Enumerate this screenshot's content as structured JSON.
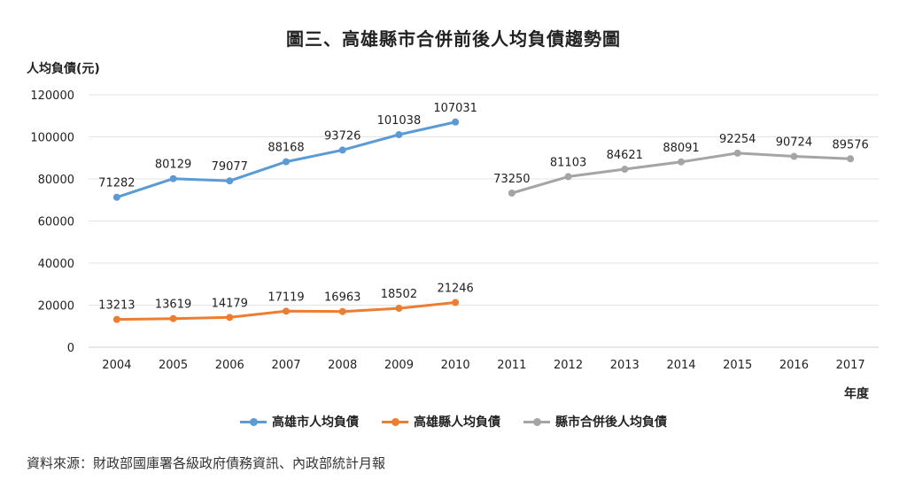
{
  "chart_data": {
    "type": "line",
    "title": "圖三、高雄縣市合併前後人均負債趨勢圖",
    "ylabel": "人均負債(元)",
    "xlabel": "年度",
    "ylim": [
      0,
      120000
    ],
    "yticks": [
      0,
      20000,
      40000,
      60000,
      80000,
      100000,
      120000
    ],
    "categories": [
      "2004",
      "2005",
      "2006",
      "2007",
      "2008",
      "2009",
      "2010",
      "2011",
      "2012",
      "2013",
      "2014",
      "2015",
      "2016",
      "2017"
    ],
    "grid": true,
    "legend_position": "bottom",
    "series": [
      {
        "name": "高雄市人均負債",
        "color": "#5b9bd5",
        "values": [
          71282,
          80129,
          79077,
          88168,
          93726,
          101038,
          107031,
          null,
          null,
          null,
          null,
          null,
          null,
          null
        ]
      },
      {
        "name": "高雄縣人均負債",
        "color": "#ed7d31",
        "values": [
          13213,
          13619,
          14179,
          17119,
          16963,
          18502,
          21246,
          null,
          null,
          null,
          null,
          null,
          null,
          null
        ]
      },
      {
        "name": "縣市合併後人均負債",
        "color": "#a5a5a5",
        "values": [
          null,
          null,
          null,
          null,
          null,
          null,
          null,
          73250,
          81103,
          84621,
          88091,
          92254,
          90724,
          89576
        ]
      }
    ]
  },
  "source": "資料來源：財政部國庫署各級政府債務資訊、內政部統計月報"
}
